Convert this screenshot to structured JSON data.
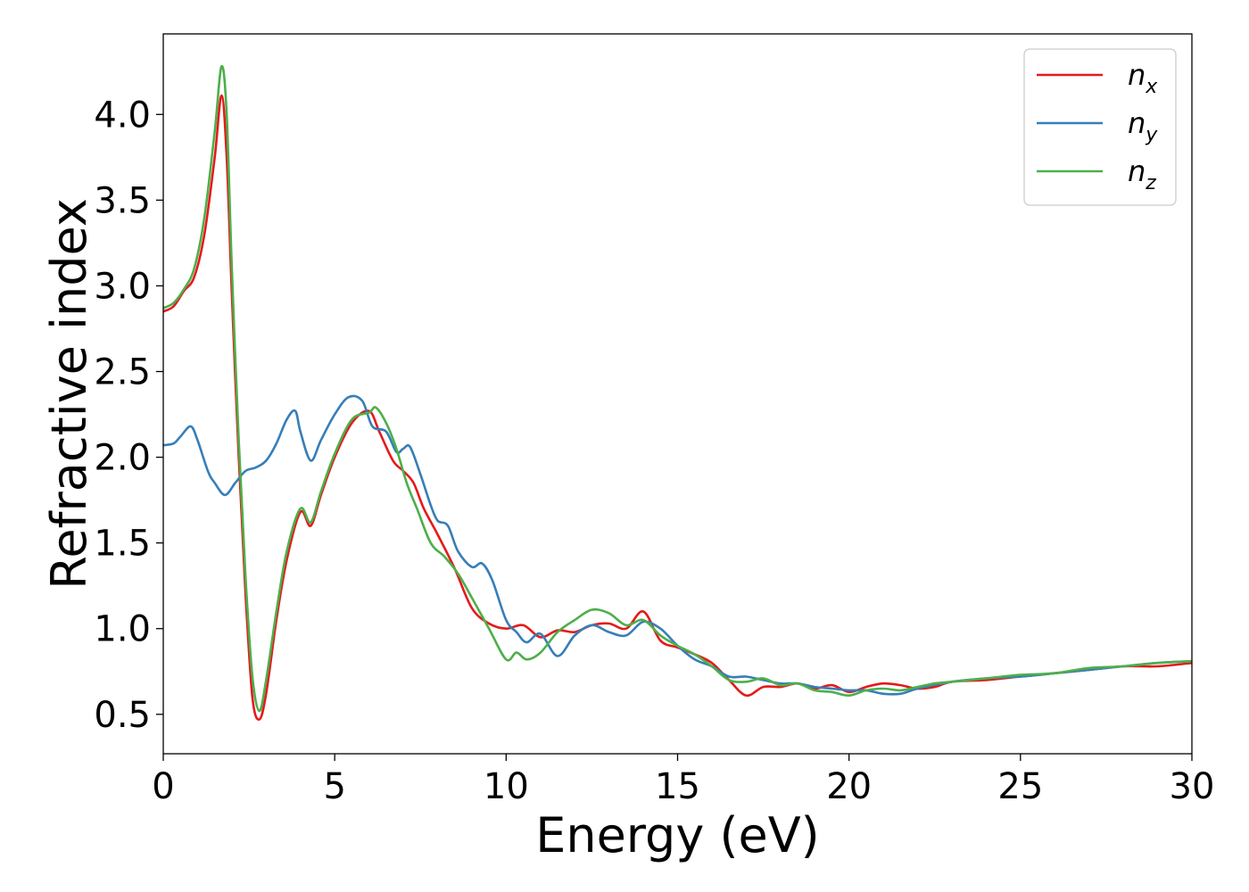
{
  "chart_data": {
    "type": "line",
    "xlabel": "Energy (eV)",
    "ylabel": "Refractive index",
    "xlim": [
      0,
      30
    ],
    "ylim": [
      0.27,
      4.47
    ],
    "x_ticks": [
      "0",
      "5",
      "10",
      "15",
      "20",
      "25",
      "30"
    ],
    "y_ticks": [
      "0.5",
      "1.0",
      "1.5",
      "2.0",
      "2.5",
      "3.0",
      "3.5",
      "4.0"
    ],
    "grid": false,
    "legend_position": "top-right",
    "series": [
      {
        "name": "n_x",
        "label_base": "n",
        "label_sub": "x",
        "color": "#e41a1c",
        "x": [
          0,
          0.3,
          0.6,
          0.9,
          1.2,
          1.5,
          1.7,
          1.85,
          2.0,
          2.2,
          2.4,
          2.6,
          2.8,
          3.0,
          3.3,
          3.6,
          4.0,
          4.3,
          4.6,
          5.0,
          5.5,
          6.0,
          6.3,
          6.7,
          7.0,
          7.3,
          7.6,
          8.0,
          8.5,
          9.0,
          9.5,
          10.0,
          10.5,
          11.0,
          11.5,
          12.0,
          12.5,
          13.0,
          13.5,
          14.0,
          14.5,
          15.0,
          15.5,
          16.0,
          16.5,
          17.0,
          17.5,
          18.0,
          18.5,
          19.0,
          19.5,
          20.0,
          20.5,
          21.0,
          21.5,
          22.0,
          22.5,
          23.0,
          24.0,
          25.0,
          26.0,
          27.0,
          28.0,
          29.0,
          30.0
        ],
        "y": [
          2.85,
          2.88,
          2.97,
          3.05,
          3.3,
          3.75,
          4.11,
          3.75,
          2.95,
          2.0,
          1.2,
          0.6,
          0.47,
          0.62,
          1.05,
          1.4,
          1.68,
          1.6,
          1.78,
          2.0,
          2.2,
          2.27,
          2.15,
          1.98,
          1.92,
          1.85,
          1.7,
          1.55,
          1.35,
          1.12,
          1.03,
          1.0,
          1.02,
          0.95,
          0.99,
          0.98,
          1.02,
          1.03,
          1.0,
          1.1,
          0.93,
          0.89,
          0.85,
          0.8,
          0.7,
          0.61,
          0.66,
          0.66,
          0.68,
          0.65,
          0.67,
          0.63,
          0.66,
          0.68,
          0.67,
          0.65,
          0.66,
          0.69,
          0.7,
          0.72,
          0.74,
          0.76,
          0.78,
          0.78,
          0.8
        ]
      },
      {
        "name": "n_y",
        "label_base": "n",
        "label_sub": "y",
        "color": "#377eb8",
        "x": [
          0,
          0.3,
          0.5,
          0.8,
          1.0,
          1.3,
          1.5,
          1.8,
          2.1,
          2.4,
          2.7,
          3.0,
          3.3,
          3.6,
          3.85,
          4.0,
          4.3,
          4.6,
          5.0,
          5.4,
          5.8,
          6.1,
          6.5,
          6.8,
          7.0,
          7.2,
          7.5,
          7.8,
          8.0,
          8.3,
          8.6,
          9.0,
          9.3,
          9.6,
          10.0,
          10.3,
          10.6,
          11.0,
          11.5,
          12.0,
          12.5,
          13.0,
          13.5,
          14.0,
          14.5,
          15.0,
          15.5,
          16.0,
          16.5,
          17.0,
          17.5,
          18.0,
          18.5,
          19.0,
          19.5,
          20.0,
          20.5,
          21.0,
          21.5,
          22.0,
          23.0,
          24.0,
          25.0,
          26.0,
          27.0,
          28.0,
          29.0,
          30.0
        ],
        "y": [
          2.07,
          2.08,
          2.12,
          2.18,
          2.1,
          1.92,
          1.85,
          1.78,
          1.85,
          1.92,
          1.94,
          1.98,
          2.08,
          2.22,
          2.27,
          2.15,
          1.98,
          2.1,
          2.25,
          2.35,
          2.33,
          2.18,
          2.15,
          2.03,
          2.05,
          2.06,
          1.9,
          1.72,
          1.63,
          1.6,
          1.45,
          1.36,
          1.38,
          1.28,
          1.05,
          0.98,
          0.92,
          0.97,
          0.84,
          0.96,
          1.02,
          0.98,
          0.96,
          1.04,
          1.0,
          0.9,
          0.82,
          0.78,
          0.72,
          0.72,
          0.7,
          0.68,
          0.68,
          0.66,
          0.65,
          0.64,
          0.64,
          0.62,
          0.62,
          0.65,
          0.69,
          0.71,
          0.72,
          0.74,
          0.76,
          0.78,
          0.8,
          0.81
        ]
      },
      {
        "name": "n_z",
        "label_base": "n",
        "label_sub": "z",
        "color": "#4daf4a",
        "x": [
          0,
          0.3,
          0.6,
          0.9,
          1.2,
          1.5,
          1.7,
          1.85,
          2.0,
          2.2,
          2.4,
          2.6,
          2.8,
          3.0,
          3.3,
          3.6,
          4.0,
          4.3,
          4.6,
          5.0,
          5.5,
          6.0,
          6.2,
          6.5,
          6.8,
          7.1,
          7.4,
          7.8,
          8.2,
          8.6,
          9.0,
          9.5,
          10.0,
          10.3,
          10.6,
          11.0,
          11.5,
          12.0,
          12.5,
          13.0,
          13.5,
          14.0,
          14.5,
          15.0,
          15.5,
          16.0,
          16.5,
          17.0,
          17.5,
          18.0,
          18.5,
          19.0,
          19.5,
          20.0,
          20.5,
          21.0,
          21.5,
          22.0,
          22.5,
          23.0,
          24.0,
          25.0,
          26.0,
          27.0,
          28.0,
          29.0,
          30.0
        ],
        "y": [
          2.87,
          2.9,
          2.98,
          3.1,
          3.4,
          3.9,
          4.28,
          4.0,
          3.1,
          2.1,
          1.3,
          0.72,
          0.52,
          0.7,
          1.1,
          1.45,
          1.7,
          1.62,
          1.8,
          2.02,
          2.22,
          2.26,
          2.29,
          2.2,
          2.05,
          1.85,
          1.7,
          1.5,
          1.42,
          1.32,
          1.18,
          1.0,
          0.82,
          0.86,
          0.82,
          0.86,
          0.98,
          1.05,
          1.11,
          1.09,
          1.02,
          1.05,
          0.96,
          0.9,
          0.85,
          0.78,
          0.7,
          0.69,
          0.71,
          0.67,
          0.68,
          0.64,
          0.63,
          0.61,
          0.64,
          0.65,
          0.64,
          0.66,
          0.68,
          0.69,
          0.71,
          0.73,
          0.74,
          0.77,
          0.78,
          0.8,
          0.81
        ]
      }
    ]
  }
}
